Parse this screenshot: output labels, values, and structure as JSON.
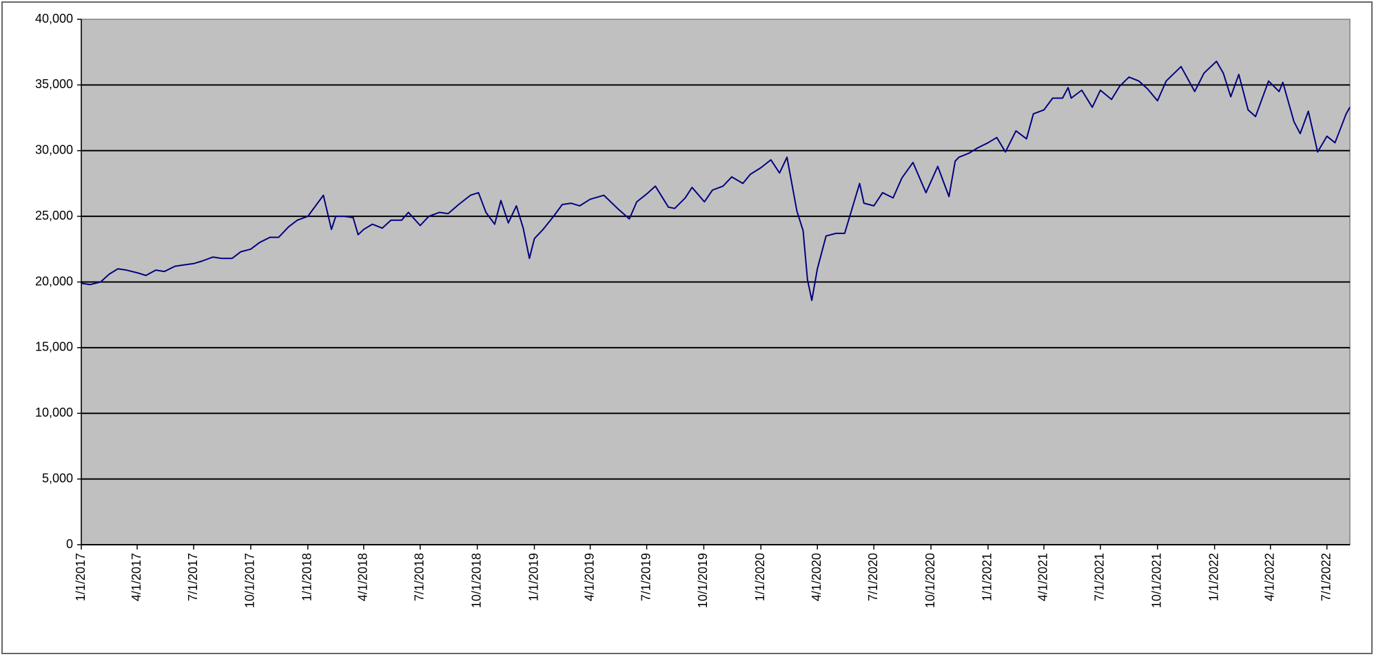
{
  "chart_data": {
    "type": "line",
    "x": [
      "1/1/2017",
      "1/15/2017",
      "2/1/2017",
      "2/15/2017",
      "3/1/2017",
      "3/15/2017",
      "4/1/2017",
      "4/15/2017",
      "5/1/2017",
      "5/15/2017",
      "6/1/2017",
      "6/15/2017",
      "7/1/2017",
      "7/15/2017",
      "8/1/2017",
      "8/15/2017",
      "9/1/2017",
      "9/15/2017",
      "10/1/2017",
      "10/15/2017",
      "11/1/2017",
      "11/15/2017",
      "12/1/2017",
      "12/15/2017",
      "1/1/2018",
      "1/15/2018",
      "1/26/2018",
      "2/8/2018",
      "2/15/2018",
      "3/1/2018",
      "3/15/2018",
      "3/23/2018",
      "4/1/2018",
      "4/15/2018",
      "5/1/2018",
      "5/15/2018",
      "6/1/2018",
      "6/12/2018",
      "7/1/2018",
      "7/15/2018",
      "8/1/2018",
      "8/15/2018",
      "9/1/2018",
      "9/20/2018",
      "10/3/2018",
      "10/15/2018",
      "10/29/2018",
      "11/8/2018",
      "11/20/2018",
      "12/3/2018",
      "12/14/2018",
      "12/24/2018",
      "1/1/2019",
      "1/15/2019",
      "2/1/2019",
      "2/15/2019",
      "3/1/2019",
      "3/15/2019",
      "4/1/2019",
      "4/23/2019",
      "5/15/2019",
      "6/3/2019",
      "6/15/2019",
      "7/1/2019",
      "7/15/2019",
      "8/5/2019",
      "8/15/2019",
      "9/1/2019",
      "9/12/2019",
      "10/2/2019",
      "10/15/2019",
      "11/1/2019",
      "11/15/2019",
      "12/3/2019",
      "12/15/2019",
      "1/1/2020",
      "1/17/2020",
      "1/31/2020",
      "2/12/2020",
      "2/28/2020",
      "3/9/2020",
      "3/16/2020",
      "3/23/2020",
      "4/1/2020",
      "4/15/2020",
      "5/1/2020",
      "5/15/2020",
      "6/8/2020",
      "6/15/2020",
      "7/1/2020",
      "7/15/2020",
      "8/1/2020",
      "8/15/2020",
      "9/2/2020",
      "9/23/2020",
      "10/12/2020",
      "10/30/2020",
      "11/9/2020",
      "11/15/2020",
      "12/1/2020",
      "12/15/2020",
      "1/1/2021",
      "1/15/2021",
      "1/29/2021",
      "2/15/2021",
      "3/4/2021",
      "3/15/2021",
      "4/1/2021",
      "4/15/2021",
      "5/1/2021",
      "5/10/2021",
      "5/15/2021",
      "6/1/2021",
      "6/18/2021",
      "7/1/2021",
      "7/19/2021",
      "8/1/2021",
      "8/16/2021",
      "9/1/2021",
      "9/15/2021",
      "10/1/2021",
      "10/15/2021",
      "11/8/2021",
      "11/30/2021",
      "12/15/2021",
      "1/4/2022",
      "1/15/2022",
      "1/27/2022",
      "2/9/2022",
      "2/24/2022",
      "3/8/2022",
      "3/29/2022",
      "4/15/2022",
      "4/21/2022",
      "5/9/2022",
      "5/19/2022",
      "6/1/2022",
      "6/16/2022",
      "7/1/2022",
      "7/14/2022",
      "8/1/2022",
      "8/7/2022"
    ],
    "values": [
      19900,
      19800,
      20000,
      20600,
      21000,
      20900,
      20700,
      20500,
      20900,
      20800,
      21200,
      21300,
      21400,
      21600,
      21900,
      21800,
      21800,
      22300,
      22500,
      23000,
      23400,
      23400,
      24200,
      24700,
      25000,
      25900,
      26600,
      24000,
      25000,
      25000,
      24900,
      23600,
      24000,
      24400,
      24100,
      24700,
      24700,
      25300,
      24300,
      25000,
      25300,
      25200,
      25900,
      26600,
      26800,
      25300,
      24400,
      26200,
      24500,
      25800,
      24100,
      21800,
      23300,
      24000,
      25000,
      25900,
      26000,
      25800,
      26300,
      26600,
      25600,
      24800,
      26100,
      26700,
      27300,
      25700,
      25600,
      26400,
      27200,
      26100,
      27000,
      27300,
      28000,
      27500,
      28200,
      28700,
      29300,
      28300,
      29500,
      25400,
      23900,
      20200,
      18600,
      21000,
      23500,
      23700,
      23700,
      27500,
      26000,
      25800,
      26800,
      26400,
      27900,
      29100,
      26800,
      28800,
      26500,
      29200,
      29500,
      29800,
      30200,
      30600,
      31000,
      29900,
      31500,
      30900,
      32800,
      33100,
      34000,
      34000,
      34800,
      34000,
      34600,
      33300,
      34600,
      33900,
      34900,
      35600,
      35300,
      34700,
      33800,
      35300,
      36400,
      34500,
      35900,
      36800,
      35900,
      34100,
      35800,
      33100,
      32600,
      35300,
      34500,
      35200,
      32200,
      31300,
      33000,
      29900,
      31100,
      30600,
      32800,
      33300
    ],
    "color": "#000080",
    "xlim": [
      "1/1/2017",
      "8/7/2022"
    ],
    "xticks": [
      "1/1/2017",
      "4/1/2017",
      "7/1/2017",
      "10/1/2017",
      "1/1/2018",
      "4/1/2018",
      "7/1/2018",
      "10/1/2018",
      "1/1/2019",
      "4/1/2019",
      "7/1/2019",
      "10/1/2019",
      "1/1/2020",
      "4/1/2020",
      "7/1/2020",
      "10/1/2020",
      "1/1/2021",
      "4/1/2021",
      "7/1/2021",
      "10/1/2021",
      "1/1/2022",
      "4/1/2022",
      "7/1/2022"
    ],
    "ylim": [
      0,
      40000
    ],
    "yticks": [
      0,
      {
        "value": 5000,
        "label": "5,000"
      },
      {
        "value": 10000,
        "label": "10,000"
      },
      {
        "value": 15000,
        "label": "15,000"
      },
      {
        "value": 20000,
        "label": "20,000"
      },
      {
        "value": 25000,
        "label": "25,000"
      },
      {
        "value": 30000,
        "label": "30,000"
      },
      {
        "value": 35000,
        "label": "35,000"
      },
      {
        "value": 40000,
        "label": "40,000"
      }
    ],
    "grid": true
  }
}
